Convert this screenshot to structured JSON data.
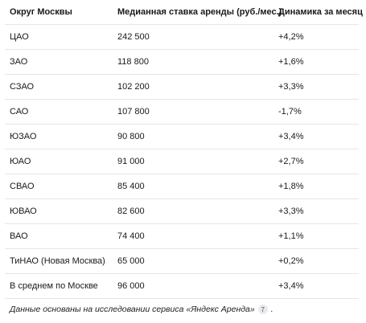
{
  "table": {
    "headers": [
      "Округ Москвы",
      "Медианная ставка аренды (руб./мес.)",
      "Динамика за месяц"
    ],
    "rows": [
      {
        "district": "ЦАО",
        "rent": "242 500",
        "change": "+4,2%"
      },
      {
        "district": "ЗАО",
        "rent": "118 800",
        "change": "+1,6%"
      },
      {
        "district": "СЗАО",
        "rent": "102 200",
        "change": "+3,3%"
      },
      {
        "district": "САО",
        "rent": "107 800",
        "change": "-1,7%"
      },
      {
        "district": "ЮЗАО",
        "rent": "90 800",
        "change": "+3,4%"
      },
      {
        "district": "ЮАО",
        "rent": "91 000",
        "change": "+2,7%"
      },
      {
        "district": "СВАО",
        "rent": "85 400",
        "change": "+1,8%"
      },
      {
        "district": "ЮВАО",
        "rent": "82 600",
        "change": "+3,3%"
      },
      {
        "district": "ВАО",
        "rent": "74 400",
        "change": "+1,1%"
      },
      {
        "district": "ТиНАО (Новая Москва)",
        "rent": "65 000",
        "change": "+0,2%"
      },
      {
        "district": "В среднем по Москве",
        "rent": "96 000",
        "change": "+3,4%"
      }
    ]
  },
  "footnote": {
    "text": "Данные основаны на исследовании сервиса «Яндекс Аренда»",
    "citation": "7",
    "trailing": "."
  }
}
